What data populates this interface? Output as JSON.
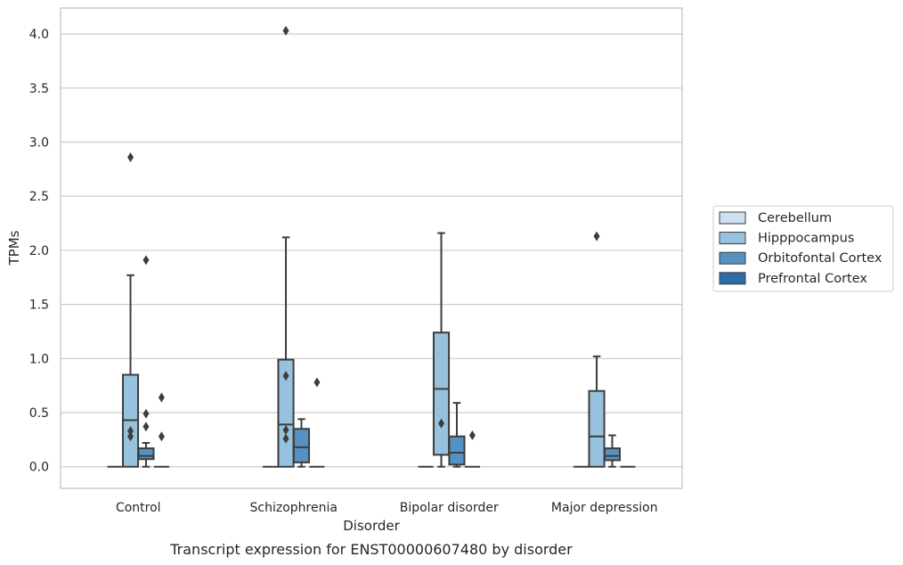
{
  "chart_data": {
    "type": "box",
    "caption": "Transcript expression for ENST00000607480 by disorder",
    "xlabel": "Disorder",
    "ylabel": "TPMs",
    "ylim": [
      -0.2,
      4.24
    ],
    "yticks": [
      0.0,
      0.5,
      1.0,
      1.5,
      2.0,
      2.5,
      3.0,
      3.5,
      4.0
    ],
    "ytick_labels": [
      "0.0",
      "0.5",
      "1.0",
      "1.5",
      "2.0",
      "2.5",
      "3.0",
      "3.5",
      "4.0"
    ],
    "grid": "horizontal",
    "legend_position": "right",
    "categories": [
      "Control",
      "Schizophrenia",
      "Bipolar disorder",
      "Major depression"
    ],
    "series": [
      {
        "name": "Cerebellum",
        "color": "#cfe0f0",
        "boxes": [
          {
            "q1": 0,
            "median": 0,
            "q3": 0,
            "whislo": 0,
            "whishi": 0,
            "fliers": []
          },
          {
            "q1": 0,
            "median": 0,
            "q3": 0,
            "whislo": 0,
            "whishi": 0,
            "fliers": []
          },
          {
            "q1": 0,
            "median": 0,
            "q3": 0,
            "whislo": 0,
            "whishi": 0,
            "fliers": []
          },
          {
            "q1": 0,
            "median": 0,
            "q3": 0,
            "whislo": 0,
            "whishi": 0,
            "fliers": []
          }
        ]
      },
      {
        "name": "Hipppocampus",
        "color": "#97c2de",
        "boxes": [
          {
            "q1": 0,
            "median": 0.43,
            "q3": 0.85,
            "whislo": 0,
            "whishi": 1.77,
            "fliers": [
              2.86,
              0.33,
              0.28
            ]
          },
          {
            "q1": 0,
            "median": 0.39,
            "q3": 0.99,
            "whislo": 0,
            "whishi": 2.12,
            "fliers": [
              4.03,
              0.84,
              0.34,
              0.26
            ]
          },
          {
            "q1": 0.11,
            "median": 0.72,
            "q3": 1.24,
            "whislo": 0,
            "whishi": 2.16,
            "fliers": [
              0.4
            ]
          },
          {
            "q1": 0,
            "median": 0.28,
            "q3": 0.7,
            "whislo": 0,
            "whishi": 1.02,
            "fliers": [
              2.13
            ]
          }
        ]
      },
      {
        "name": "Orbitofontal Cortex",
        "color": "#5592c3",
        "boxes": [
          {
            "q1": 0.07,
            "median": 0.1,
            "q3": 0.17,
            "whislo": 0,
            "whishi": 0.22,
            "fliers": [
              1.91,
              0.49,
              0.37
            ]
          },
          {
            "q1": 0.04,
            "median": 0.18,
            "q3": 0.35,
            "whislo": 0,
            "whishi": 0.44,
            "fliers": []
          },
          {
            "q1": 0.02,
            "median": 0.13,
            "q3": 0.28,
            "whislo": 0,
            "whishi": 0.59,
            "fliers": []
          },
          {
            "q1": 0.06,
            "median": 0.1,
            "q3": 0.17,
            "whislo": 0,
            "whishi": 0.29,
            "fliers": []
          }
        ]
      },
      {
        "name": "Prefrontal Cortex",
        "color": "#2f6da6",
        "boxes": [
          {
            "q1": 0,
            "median": 0,
            "q3": 0,
            "whislo": 0,
            "whishi": 0,
            "fliers": [
              0.64,
              0.28
            ]
          },
          {
            "q1": 0,
            "median": 0,
            "q3": 0,
            "whislo": 0,
            "whishi": 0,
            "fliers": [
              0.78
            ]
          },
          {
            "q1": 0,
            "median": 0,
            "q3": 0,
            "whislo": 0,
            "whishi": 0,
            "fliers": [
              0.29
            ]
          },
          {
            "q1": 0,
            "median": 0,
            "q3": 0,
            "whislo": 0,
            "whishi": 0,
            "fliers": []
          }
        ]
      }
    ]
  }
}
